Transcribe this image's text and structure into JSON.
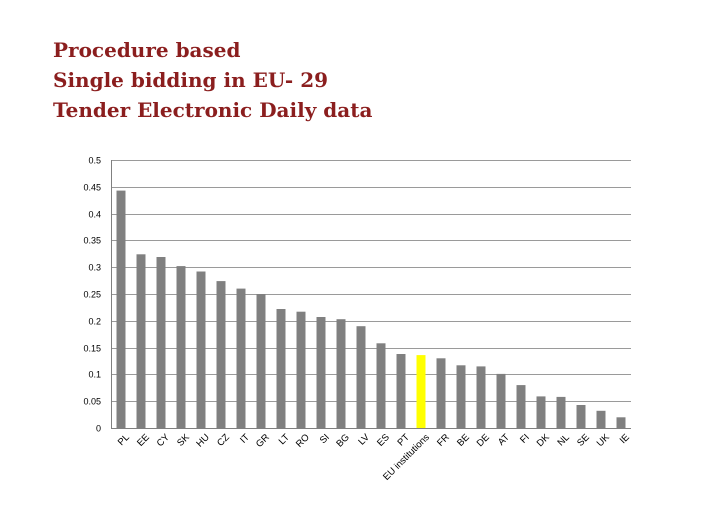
{
  "title_lines": [
    "Procedure based",
    "Single bidding in EU- 29",
    "Tender Electronic Daily data"
  ],
  "chart_data": {
    "type": "bar",
    "title": "Procedure based Single bidding in EU- 29 Tender Electronic Daily data",
    "categories": [
      "PL",
      "EE",
      "CY",
      "SK",
      "HU",
      "CZ",
      "IT",
      "GR",
      "LT",
      "RO",
      "SI",
      "BG",
      "LV",
      "ES",
      "PT",
      "EU institutions",
      "FR",
      "BE",
      "DE",
      "AT",
      "FI",
      "DK",
      "NL",
      "SE",
      "UK",
      "IE"
    ],
    "values": [
      0.443,
      0.324,
      0.319,
      0.302,
      0.292,
      0.274,
      0.26,
      0.25,
      0.222,
      0.217,
      0.207,
      0.203,
      0.19,
      0.158,
      0.138,
      0.136,
      0.13,
      0.117,
      0.115,
      0.101,
      0.08,
      0.059,
      0.058,
      0.043,
      0.032,
      0.02
    ],
    "highlight_category": "EU institutions",
    "ylim": [
      0,
      0.5
    ],
    "yticks": [
      "0",
      "0.05",
      "0.1",
      "0.15",
      "0.2",
      "0.25",
      "0.3",
      "0.35",
      "0.4",
      "0.45",
      "0.5"
    ],
    "xlabel": "",
    "ylabel": "",
    "grid": true,
    "legend": "none",
    "colors": {
      "bar": "#808080",
      "highlight": "#ffff00",
      "grid": "#9a9a9a",
      "title": "#8b1e1e"
    }
  }
}
